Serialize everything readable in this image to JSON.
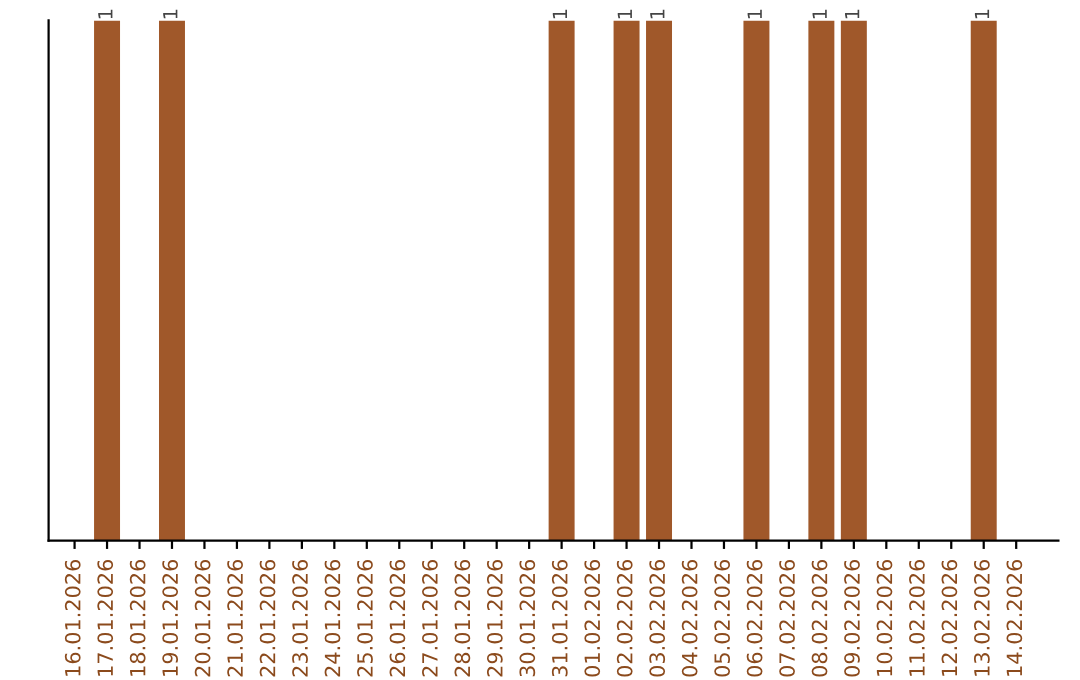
{
  "chart_data": {
    "type": "bar",
    "categories": [
      "16.01.2026",
      "17.01.2026",
      "18.01.2026",
      "19.01.2026",
      "20.01.2026",
      "21.01.2026",
      "22.01.2026",
      "23.01.2026",
      "24.01.2026",
      "25.01.2026",
      "26.01.2026",
      "27.01.2026",
      "28.01.2026",
      "29.01.2026",
      "30.01.2026",
      "31.01.2026",
      "01.02.2026",
      "02.02.2026",
      "03.02.2026",
      "04.02.2026",
      "05.02.2026",
      "06.02.2026",
      "07.02.2026",
      "08.02.2026",
      "09.02.2026",
      "10.02.2026",
      "11.02.2026",
      "12.02.2026",
      "13.02.2026",
      "14.02.2026"
    ],
    "values": [
      0,
      1,
      0,
      1,
      0,
      0,
      0,
      0,
      0,
      0,
      0,
      0,
      0,
      0,
      0,
      1,
      0,
      1,
      1,
      0,
      0,
      1,
      0,
      1,
      1,
      0,
      0,
      0,
      1,
      0
    ],
    "value_labels": [
      null,
      "1",
      null,
      "1",
      null,
      null,
      null,
      null,
      null,
      null,
      null,
      null,
      null,
      null,
      null,
      "1",
      null,
      "1",
      "1",
      null,
      null,
      "1",
      null,
      "1",
      "1",
      null,
      null,
      null,
      "1",
      null
    ],
    "color": "#a0582a",
    "grid": false,
    "legend": false,
    "tick_labels": "x"
  }
}
